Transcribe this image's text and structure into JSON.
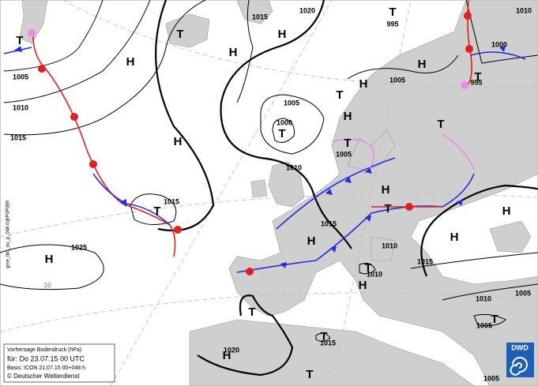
{
  "pressure_centers": [
    "T",
    "T",
    "H",
    "H",
    "T",
    "H",
    "H",
    "T",
    "T",
    "H",
    "H",
    "T",
    "H",
    "T",
    "T",
    "H",
    "T",
    "T",
    "H",
    "H",
    "H",
    "H",
    "T",
    "H",
    "T",
    "T",
    "T",
    "H",
    "T"
  ],
  "isobar_labels": [
    "1015",
    "1020",
    "1010",
    "1000",
    "1005",
    "1010",
    "1015",
    "1005",
    "1000",
    "1005",
    "995",
    "995",
    "1005",
    "1010",
    "1015",
    "1015",
    "1025",
    "1010",
    "1010",
    "1015",
    "1010",
    "1005",
    "1005",
    "1020",
    "1015",
    "1005",
    "30"
  ],
  "legend": {
    "title": "Vorhersage Bodendruck (hPa)",
    "valid": "für:  Do 23.07.15  00 UTC",
    "basis": "Basis: ICON  21.07.15 00+048 h",
    "copyright": "© Deutscher Wetterdienst"
  },
  "logo": "DWD",
  "side_code": "gme_tb0_ou_p_048 0@P0P089"
}
